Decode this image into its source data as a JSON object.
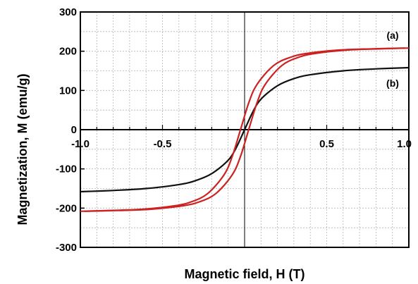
{
  "chart_data": {
    "type": "line",
    "title": "",
    "xlabel": "Magnetic field, H (T)",
    "ylabel": "Magnetization, M (emu/g)",
    "xlim": [
      -1.0,
      1.0
    ],
    "ylim": [
      -300,
      300
    ],
    "x_ticks": [
      "-1.0",
      "-0.5",
      "0.5",
      "1.0"
    ],
    "x_tick_values": [
      -1.0,
      -0.5,
      0.5,
      1.0
    ],
    "y_ticks": [
      "300",
      "200",
      "100",
      "0",
      "-100",
      "-200",
      "-300"
    ],
    "y_tick_values": [
      300,
      200,
      100,
      0,
      -100,
      -200,
      -300
    ],
    "grid": true,
    "legend": "none (series labelled directly on curves)",
    "series": [
      {
        "name": "(a)",
        "color": "#cc2222",
        "branch_offset_T": 0.025,
        "x": [
          -1.0,
          -0.8,
          -0.6,
          -0.4,
          -0.3,
          -0.2,
          -0.1,
          -0.05,
          0.0,
          0.05,
          0.1,
          0.2,
          0.3,
          0.4,
          0.6,
          0.8,
          1.0
        ],
        "y": [
          -208,
          -206,
          -203,
          -194,
          -184,
          -163,
          -115,
          -68,
          0,
          68,
          115,
          163,
          184,
          194,
          203,
          206,
          208
        ]
      },
      {
        "name": "(b)",
        "color": "#111111",
        "branch_offset_T": 0.0,
        "x": [
          -1.0,
          -0.8,
          -0.6,
          -0.4,
          -0.3,
          -0.2,
          -0.1,
          -0.05,
          0.0,
          0.05,
          0.1,
          0.2,
          0.3,
          0.4,
          0.6,
          0.8,
          1.0
        ],
        "y": [
          -158,
          -155,
          -150,
          -140,
          -130,
          -112,
          -78,
          -45,
          0,
          45,
          78,
          112,
          130,
          140,
          150,
          155,
          158
        ]
      }
    ]
  }
}
